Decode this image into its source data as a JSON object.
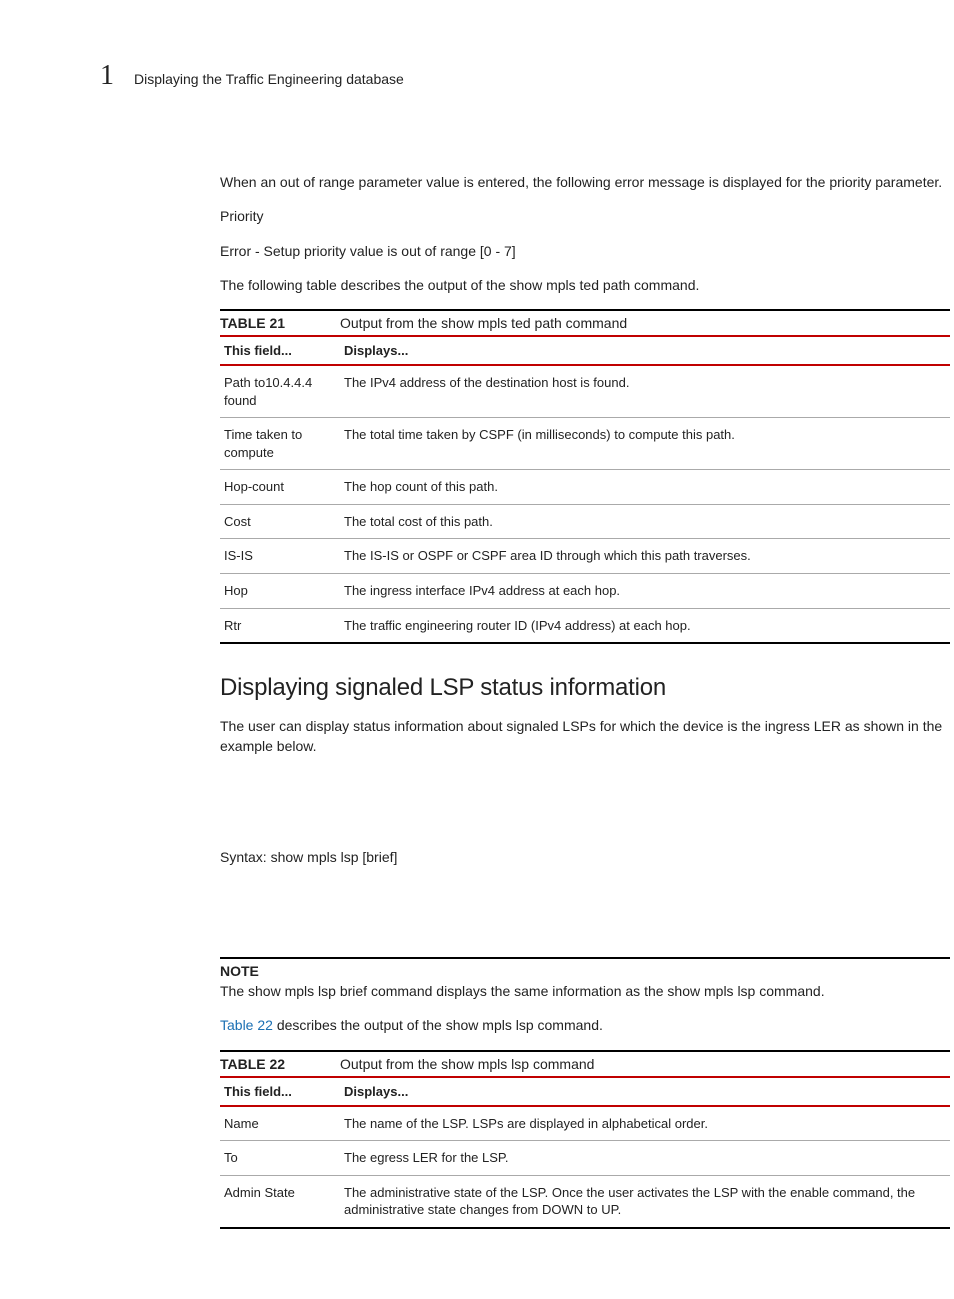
{
  "header": {
    "chapter_number": "1",
    "page_title": "Displaying the Traffic Engineering database"
  },
  "intro": {
    "p1": "When an out of range parameter value is entered, the following error message is displayed for the priority parameter.",
    "p2": "Priority",
    "p3": "Error - Setup priority value is out of range [0 - 7]",
    "p4": "The following table describes the output of the show mpls ted path command."
  },
  "table21": {
    "label": "TABLE 21",
    "title": "Output from the show mpls ted path command",
    "col1": "This field...",
    "col2": "Displays...",
    "rows": [
      {
        "f": "Path to10.4.4.4 found",
        "d": "The IPv4 address of the destination host is found."
      },
      {
        "f": "Time taken to compute",
        "d": "The total time taken by CSPF (in milliseconds) to compute this path."
      },
      {
        "f": "Hop-count",
        "d": "The hop count of this path."
      },
      {
        "f": "Cost",
        "d": "The total cost of this path."
      },
      {
        "f": "IS-IS",
        "d": "The IS-IS or OSPF or CSPF area ID through which this path traverses."
      },
      {
        "f": "Hop",
        "d": "The ingress interface IPv4 address at each hop."
      },
      {
        "f": "Rtr",
        "d": "The traffic engineering router ID (IPv4 address) at each hop."
      }
    ]
  },
  "section2": {
    "heading": "Displaying signaled LSP status information",
    "p1": "The user can display status information about signaled LSPs for which the device is the ingress LER as shown in the example below.",
    "syntax": "Syntax:  show mpls lsp [brief]"
  },
  "note": {
    "label": "NOTE",
    "text": "The show mpls lsp brief command displays the same information as the show mpls lsp command."
  },
  "link_line": {
    "link": "Table 22",
    "rest": " describes the output of the show mpls lsp command."
  },
  "table22": {
    "label": "TABLE 22",
    "title": "Output from the show mpls lsp command",
    "col1": "This field...",
    "col2": "Displays...",
    "rows": [
      {
        "f": "Name",
        "d": "The name of the LSP. LSPs are displayed in alphabetical order."
      },
      {
        "f": "To",
        "d": "The egress LER for the LSP."
      },
      {
        "f": "Admin State",
        "d": "The administrative state of the LSP. Once the user activates the LSP with the enable command, the administrative state changes from DOWN to UP."
      }
    ]
  }
}
